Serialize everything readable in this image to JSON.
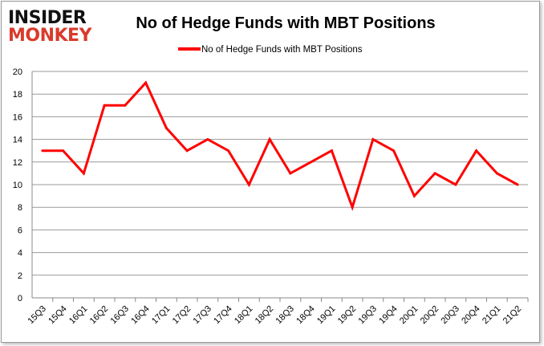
{
  "logo": {
    "line1": "INSIDER",
    "line2": "MONKEY"
  },
  "chart_data": {
    "type": "line",
    "title": "No of Hedge Funds with MBT Positions",
    "xlabel": "",
    "ylabel": "",
    "categories": [
      "15Q3",
      "15Q4",
      "16Q1",
      "16Q2",
      "16Q3",
      "16Q4",
      "17Q1",
      "17Q2",
      "17Q3",
      "17Q4",
      "18Q1",
      "18Q2",
      "18Q3",
      "18Q4",
      "19Q1",
      "19Q2",
      "19Q3",
      "19Q4",
      "20Q1",
      "20Q2",
      "20Q3",
      "20Q4",
      "21Q1",
      "21Q2"
    ],
    "series": [
      {
        "name": "No of Hedge Funds with MBT Positions",
        "color": "#ff0000",
        "values": [
          13,
          13,
          11,
          17,
          17,
          19,
          15,
          13,
          14,
          13,
          10,
          14,
          11,
          12,
          13,
          8,
          14,
          13,
          9,
          11,
          10,
          13,
          11,
          10
        ]
      }
    ],
    "ylim": [
      0,
      20
    ],
    "yticks": [
      0,
      2,
      4,
      6,
      8,
      10,
      12,
      14,
      16,
      18,
      20
    ],
    "grid": true,
    "legend_position": "top-center"
  }
}
